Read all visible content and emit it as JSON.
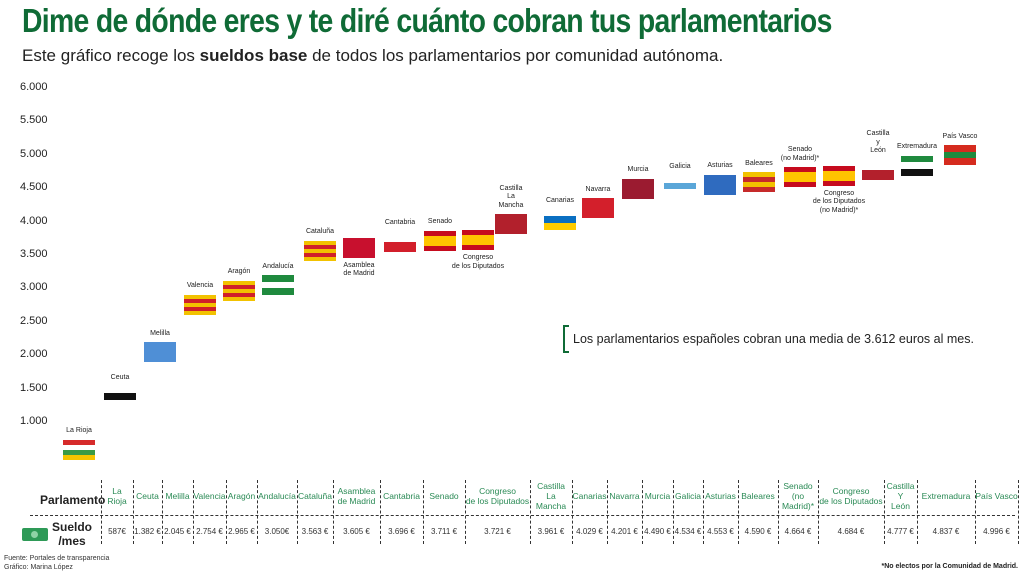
{
  "title": "Dime de dónde eres y te diré cuánto cobran tus parlamentarios",
  "subtitle_pre": "Este gráfico recoge los ",
  "subtitle_bold": "sueldos base",
  "subtitle_post": " de todos los parlamentarios por comunidad autónoma.",
  "note": "Los parlamentarios españoles cobran una media de 3.612 euros al mes.",
  "table": {
    "row1_header": "Parlamento",
    "row2_header": "Sueldo\n/mes",
    "money_icon": "banknote-icon",
    "headers": [
      "La\nRioja",
      "Ceuta",
      "Melilla",
      "Valencia",
      "Aragón",
      "Andalucía",
      "Cataluña",
      "Asamblea\nde Madrid",
      "Cantabria",
      "Senado",
      "Congreso\nde los Diputados",
      "Castilla\nLa\nMancha",
      "Canarias",
      "Navarra",
      "Murcia",
      "Galicia",
      "Asturias",
      "Baleares",
      "Senado\n(no Madrid)*",
      "Congreso\nde los Diputados",
      "Castilla\nY\nLeón",
      "Extremadura",
      "País Vasco"
    ],
    "values": [
      "587€",
      "1.382 €",
      "2.045 €",
      "2.754 €",
      "2.965 €",
      "3.050€",
      "3.563 €",
      "3.605 €",
      "3.696 €",
      "3.711 €",
      "3.721 €",
      "3.961 €",
      "4.029 €",
      "4.201 €",
      "4.490  €",
      "4.534 €",
      "4.553 €",
      "4.590 €",
      "4.664 €",
      "4.684 €",
      "4.777 €",
      "4.837 €",
      "4.996 €"
    ]
  },
  "source": "Fuente: Portales de transparencia\nGráfico: Marina López",
  "footnote": "*No electos por la Comunidad de Madrid.",
  "chart_data": {
    "type": "scatter",
    "title": "Dime de dónde eres y te diré cuánto cobran tus parlamentarios",
    "ylim": [
      500,
      6000
    ],
    "yticks": [
      "1.000",
      "1.500",
      "2.000",
      "2.500",
      "3.000",
      "3.500",
      "4.000",
      "4.500",
      "5.000",
      "5.500",
      "6.000"
    ],
    "ytick_values": [
      1000,
      1500,
      2000,
      2500,
      3000,
      3500,
      4000,
      4500,
      5000,
      5500,
      6000
    ],
    "grid": false,
    "marker": "flag",
    "categories": [
      "La Rioja",
      "Ceuta",
      "Melilla",
      "Valencia",
      "Aragón",
      "Andalucía",
      "Cataluña",
      "Asamblea\nde Madrid",
      "Cantabria",
      "Senado",
      "Congreso\nde los Diputados",
      "Castilla\nLa\nMancha",
      "Canarias",
      "Navarra",
      "Murcia",
      "Galicia",
      "Asturias",
      "Baleares",
      "Senado\n(no Madrid)*",
      "Congreso\nde los Diputados\n(no Madrid)*",
      "Castilla\ny\nLeón",
      "Extremadura",
      "País Vasco"
    ],
    "values": [
      587,
      1382,
      2045,
      2754,
      2965,
      3050,
      3563,
      3605,
      3696,
      3711,
      3721,
      3961,
      4029,
      4201,
      4490,
      4534,
      4553,
      4590,
      4664,
      4684,
      4777,
      4837,
      4996
    ]
  }
}
